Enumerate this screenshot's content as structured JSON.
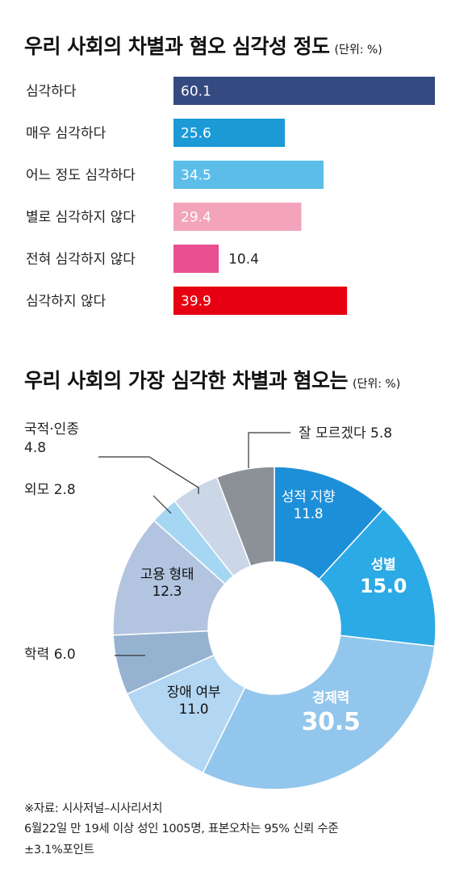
{
  "chart_data": [
    {
      "type": "bar",
      "title": "우리 사회의 차별과 혐오 심각성 정도",
      "unit": "(단위: %)",
      "categories": [
        "심각하다",
        "매우 심각하다",
        "어느 정도 심각하다",
        "별로 심각하지 않다",
        "전혀 심각하지 않다",
        "심각하지 않다"
      ],
      "values": [
        60.1,
        25.6,
        34.5,
        29.4,
        10.4,
        39.9
      ],
      "value_labels": [
        "60.1",
        "25.6",
        "34.5",
        "29.4",
        "10.4",
        "39.9"
      ],
      "colors": [
        "#354a80",
        "#1b9ad6",
        "#5cbde9",
        "#f3a3bb",
        "#ea4f91",
        "#e60012"
      ],
      "xlim": [
        0,
        60.1
      ],
      "grid": false
    },
    {
      "type": "pie",
      "title": "우리 사회의 가장 심각한 차별과 혐오는",
      "unit": "(단위: %)",
      "donut": true,
      "slices": [
        {
          "label": "성적 지향",
          "value": 11.8,
          "value_label": "11.8",
          "color": "#1d8fd8"
        },
        {
          "label": "성별",
          "value": 15.0,
          "value_label": "15.0",
          "color": "#2baae6"
        },
        {
          "label": "경제력",
          "value": 30.5,
          "value_label": "30.5",
          "color": "#93c6ec"
        },
        {
          "label": "장애 여부",
          "value": 11.0,
          "value_label": "11.0",
          "color": "#b3d6f2"
        },
        {
          "label": "학력",
          "value": 6.0,
          "value_label": "6.0",
          "color": "#96b2d1"
        },
        {
          "label": "고용 형태",
          "value": 12.3,
          "value_label": "12.3",
          "color": "#b2c4df"
        },
        {
          "label": "외모",
          "value": 2.8,
          "value_label": "2.8",
          "color": "#a6d7f2"
        },
        {
          "label": "국적·인종",
          "value": 4.8,
          "value_label": "4.8",
          "color": "#cbd6e7"
        },
        {
          "label": "잘 모르겠다",
          "value": 5.8,
          "value_label": "5.8",
          "color": "#8c9197"
        }
      ]
    }
  ],
  "footer": {
    "line1": "※자료: 시사저널–시사리서치",
    "line2": "6월22일 만 19세 이상 성인 1005명, 표본오차는 95% 신뢰 수준",
    "line3": "±3.1%포인트"
  }
}
